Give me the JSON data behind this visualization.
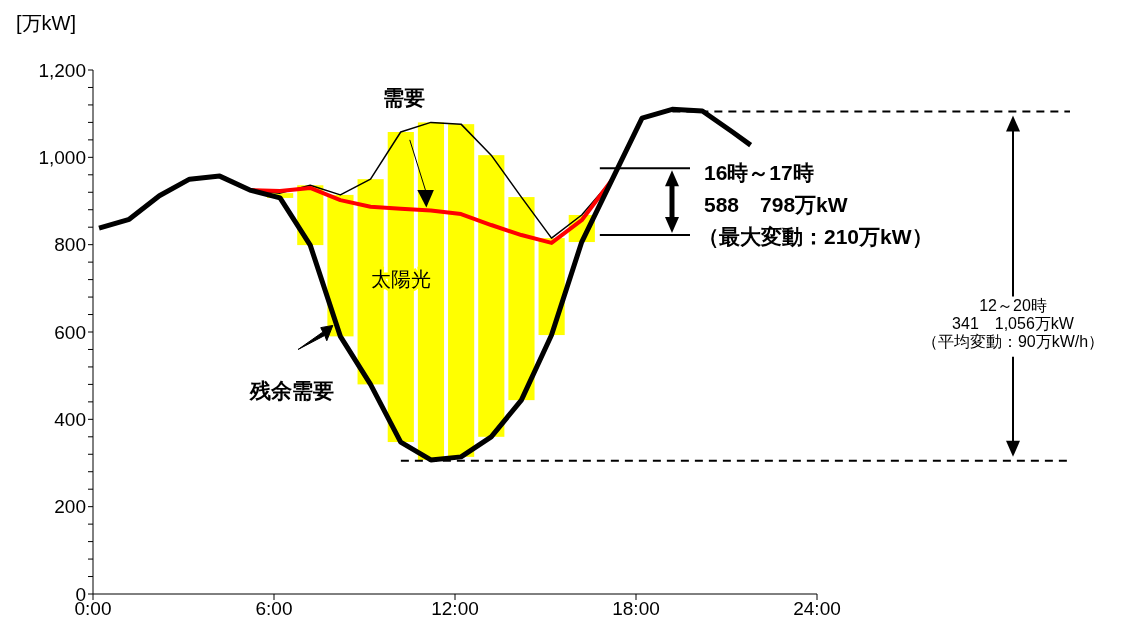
{
  "chart_data": {
    "type": "line",
    "ylabel": "[万kW]",
    "xlim": [
      0,
      24
    ],
    "xticks": [
      {
        "value": 0,
        "label": "0:00"
      },
      {
        "value": 6,
        "label": "6:00"
      },
      {
        "value": 12,
        "label": "12:00"
      },
      {
        "value": 18,
        "label": "18:00"
      },
      {
        "value": 24,
        "label": "24:00"
      }
    ],
    "ylim": [
      0,
      1200
    ],
    "yticks": [
      0,
      {
        "value": 40,
        "label": null
      },
      {
        "value": 80,
        "label": null
      },
      {
        "value": 120,
        "label": null
      },
      {
        "value": 160,
        "label": null
      },
      200,
      {
        "value": 240,
        "label": null
      },
      {
        "value": 280,
        "label": null
      },
      {
        "value": 320,
        "label": null
      },
      {
        "value": 360,
        "label": null
      },
      400,
      {
        "value": 440,
        "label": null
      },
      {
        "value": 480,
        "label": null
      },
      {
        "value": 520,
        "label": null
      },
      {
        "value": 560,
        "label": null
      },
      600,
      {
        "value": 640,
        "label": null
      },
      {
        "value": 680,
        "label": null
      },
      {
        "value": 720,
        "label": null
      },
      {
        "value": 760,
        "label": null
      },
      800,
      {
        "value": 840,
        "label": null
      },
      {
        "value": 880,
        "label": null
      },
      {
        "value": 920,
        "label": null
      },
      {
        "value": 960,
        "label": null
      },
      {
        "value": 1000,
        "label": "1,000"
      },
      {
        "value": 1040,
        "label": null
      },
      {
        "value": 1080,
        "label": null
      },
      {
        "value": 1120,
        "label": null
      },
      {
        "value": 1160,
        "label": null
      },
      {
        "value": 1200,
        "label": "1,200"
      }
    ],
    "grid": false,
    "marker": "none",
    "line_style": "solid",
    "series": [
      {
        "type": "bar",
        "name": "太陽光",
        "color": "#ffff00",
        "x": [
          6.2,
          7.2,
          8.2,
          9.2,
          10.2,
          11.2,
          12.2,
          13.2,
          14.2,
          15.2,
          16.2
        ],
        "base": [
          907,
          799,
          590,
          480,
          348,
          307,
          314,
          360,
          444,
          593,
          806
        ],
        "values": [
          11,
          137,
          324,
          470,
          710,
          773,
          762,
          645,
          465,
          222,
          62
        ]
      },
      {
        "type": "line",
        "name": "需要",
        "color": "#000000",
        "x": [
          5.2,
          6.2,
          7.2,
          8.2,
          9.2,
          10.2,
          11.2,
          12.2,
          13.2,
          14.2,
          15.2,
          16.2,
          17.2
        ],
        "values": [
          925,
          918,
          936,
          914,
          950,
          1058,
          1080,
          1076,
          1005,
          909,
          815,
          868,
          948
        ]
      },
      {
        "type": "line",
        "color": "#ff0000",
        "x": [
          5.2,
          6.2,
          7.2,
          8.2,
          9.2,
          10.2,
          11.2,
          12.2,
          13.2,
          14.2,
          15.2,
          16.2,
          17.2
        ],
        "values": [
          925,
          923,
          930,
          902,
          887,
          882,
          878,
          870,
          845,
          822,
          804,
          856,
          948
        ]
      },
      {
        "type": "line",
        "name": "残余需要",
        "color": "#000000",
        "x": [
          0.2,
          1.2,
          2.2,
          3.2,
          4.2,
          5.2,
          6.2,
          7.2,
          8.2,
          9.2,
          10.2,
          11.2,
          12.2,
          13.2,
          14.2,
          15.2,
          16.2,
          17.2,
          18.2,
          19.2,
          20.2,
          21.2,
          21.8
        ],
        "values": [
          838,
          858,
          912,
          950,
          957,
          925,
          907,
          799,
          590,
          480,
          348,
          307,
          314,
          360,
          444,
          593,
          806,
          948,
          1090,
          1110,
          1106,
          1058,
          1028
        ]
      }
    ],
    "ref_lines": [
      {
        "axis": "y",
        "value": 1105,
        "line_style": "dashed",
        "color": "#000000"
      },
      {
        "axis": "y",
        "value": 305,
        "line_style": "dashed",
        "color": "#000000"
      },
      {
        "axis": "y",
        "value": 975,
        "line_style": "solid",
        "color": "#000000"
      },
      {
        "axis": "y",
        "value": 822,
        "line_style": "solid",
        "color": "#000000"
      }
    ],
    "annotations": [
      "16時～17時\n588　798万kW\n（最大変動：210万kW）",
      "12～20時\n341　1,056万kW\n（平均変動：90万kW/h）"
    ]
  }
}
